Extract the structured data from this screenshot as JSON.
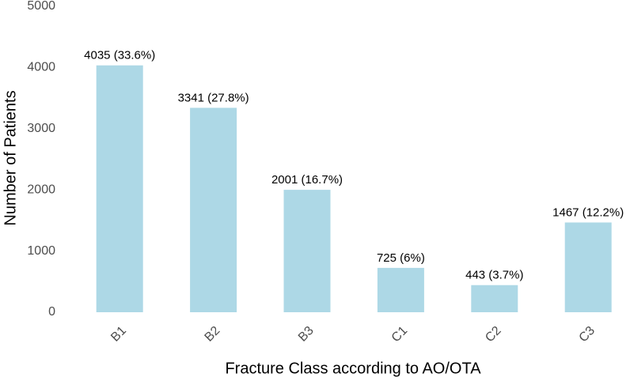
{
  "chart_data": {
    "type": "bar",
    "xlabel": "Fracture Class according to AO/OTA",
    "ylabel": "Number of Patients",
    "categories": [
      "B1",
      "B2",
      "B3",
      "C1",
      "C2",
      "C3"
    ],
    "values": [
      4035,
      3341,
      2001,
      725,
      443,
      1467
    ],
    "value_labels": [
      "4035 (33.6%)",
      "3341 (27.8%)",
      "2001 (16.7%)",
      "725 (6%)",
      "443 (3.7%)",
      "1467 (12.2%)"
    ],
    "color": "#add8e6",
    "ylim": [
      0,
      5000
    ],
    "yticks": [
      0,
      1000,
      2000,
      3000,
      4000,
      5000
    ],
    "grid": false
  }
}
